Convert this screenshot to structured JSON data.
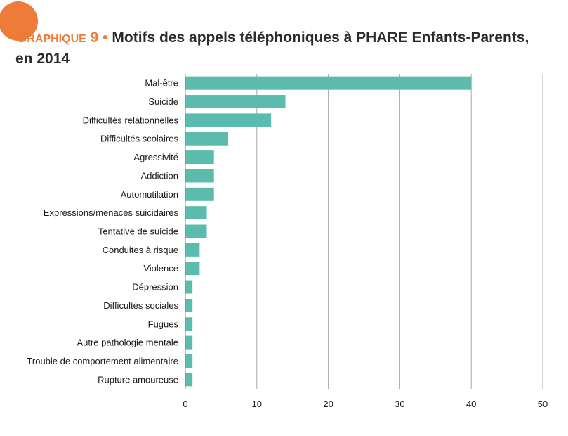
{
  "header": {
    "label_initial": "G",
    "label_rest": "RAPHIQUE",
    "number": "9",
    "bullet": "•",
    "title": "Motifs des appels téléphoniques à PHARE Enfants-Parents,",
    "title_line2": "en 2014",
    "accent_color": "#ee7b37"
  },
  "chart_data": {
    "type": "bar",
    "orientation": "horizontal",
    "categories": [
      "Mal-être",
      "Suicide",
      "Difficultés relationnelles",
      "Difficultés scolaires",
      "Agressivité",
      "Addiction",
      "Automutilation",
      "Expressions/menaces suicidaires",
      "Tentative de suicide",
      "Conduites à risque",
      "Violence",
      "Dépression",
      "Difficultés sociales",
      "Fugues",
      "Autre pathologie mentale",
      "Trouble de comportement alimentaire",
      "Rupture amoureuse"
    ],
    "values": [
      40,
      14,
      12,
      6,
      4,
      4,
      4,
      3,
      3,
      2,
      2,
      1,
      1,
      1,
      1,
      1,
      1
    ],
    "xlim": [
      0,
      50
    ],
    "xticks": [
      0,
      10,
      20,
      30,
      40,
      50
    ],
    "grid": true,
    "bar_color": "#5bbcad",
    "title": "",
    "xlabel": "",
    "ylabel": ""
  }
}
